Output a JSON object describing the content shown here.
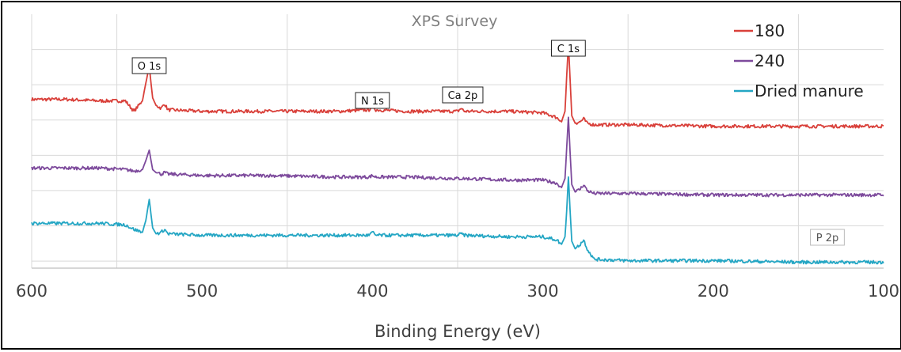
{
  "chart_data": {
    "type": "line",
    "title": "XPS Survey",
    "xlabel": "Binding Energy (eV)",
    "ylabel": "",
    "xlim": [
      600,
      100
    ],
    "x_reversed": true,
    "x_ticks": [
      600,
      500,
      400,
      300,
      200,
      100
    ],
    "y_ticks_shown": false,
    "grid": true,
    "legend_position": "top-right",
    "series": [
      {
        "name": "180",
        "color": "#d9403a",
        "x": [
          600,
          580,
          560,
          545,
          540,
          535,
          533,
          531,
          529,
          527,
          524,
          522,
          520,
          500,
          460,
          420,
          402,
          400,
          398,
          380,
          350,
          348,
          346,
          320,
          300,
          292,
          289,
          287,
          286,
          285,
          284,
          283,
          281,
          278,
          276,
          274,
          270,
          250,
          200,
          150,
          100
        ],
        "values": [
          11.3,
          11.3,
          11.2,
          11.2,
          10.5,
          11.2,
          12.4,
          13.5,
          11.4,
          10.9,
          10.7,
          11.0,
          10.6,
          10.5,
          10.5,
          10.5,
          10.6,
          10.9,
          10.6,
          10.5,
          10.5,
          10.7,
          10.5,
          10.5,
          10.4,
          10.1,
          9.8,
          10.5,
          12.8,
          15.0,
          12.7,
          10.2,
          9.7,
          9.8,
          10.0,
          9.7,
          9.6,
          9.6,
          9.5,
          9.5,
          9.5
        ]
      },
      {
        "name": "240",
        "color": "#7d4a9c",
        "x": [
          600,
          580,
          560,
          545,
          540,
          535,
          533,
          531,
          529,
          527,
          524,
          522,
          520,
          500,
          460,
          420,
          402,
          400,
          398,
          380,
          350,
          348,
          346,
          320,
          300,
          292,
          289,
          287,
          286,
          285,
          284,
          283,
          281,
          278,
          276,
          274,
          270,
          250,
          200,
          150,
          100
        ],
        "values": [
          6.7,
          6.7,
          6.7,
          6.6,
          6.5,
          6.6,
          7.2,
          7.9,
          6.6,
          6.4,
          6.3,
          6.4,
          6.3,
          6.2,
          6.2,
          6.1,
          6.1,
          6.2,
          6.1,
          6.1,
          6.0,
          6.0,
          6.0,
          5.9,
          5.9,
          5.7,
          5.4,
          6.0,
          8.0,
          10.1,
          7.8,
          5.6,
          5.1,
          5.3,
          5.6,
          5.2,
          5.0,
          5.0,
          4.9,
          4.9,
          4.9
        ]
      },
      {
        "name": "Dried manure",
        "color": "#24a6c4",
        "x": [
          600,
          580,
          560,
          545,
          540,
          535,
          533,
          531,
          529,
          527,
          524,
          522,
          520,
          500,
          460,
          420,
          402,
          400,
          398,
          380,
          350,
          348,
          346,
          320,
          300,
          292,
          289,
          287,
          286,
          285,
          284,
          283,
          281,
          278,
          276,
          274,
          270,
          250,
          200,
          150,
          100
        ],
        "values": [
          3.0,
          3.0,
          3.0,
          2.9,
          2.6,
          2.4,
          3.2,
          4.6,
          2.7,
          2.3,
          2.4,
          2.6,
          2.3,
          2.2,
          2.2,
          2.2,
          2.2,
          2.4,
          2.2,
          2.2,
          2.2,
          2.3,
          2.2,
          2.1,
          2.1,
          1.9,
          1.6,
          2.1,
          3.8,
          6.1,
          3.9,
          1.8,
          1.3,
          1.6,
          1.9,
          1.3,
          0.6,
          0.5,
          0.5,
          0.4,
          0.4
        ]
      }
    ],
    "annotations": [
      {
        "text": "O 1s",
        "x": 531
      },
      {
        "text": "N 1s",
        "x": 400
      },
      {
        "text": "Ca 2p",
        "x": 347
      },
      {
        "text": "C 1s",
        "x": 285
      },
      {
        "text": "P 2p",
        "x": 133
      }
    ]
  }
}
